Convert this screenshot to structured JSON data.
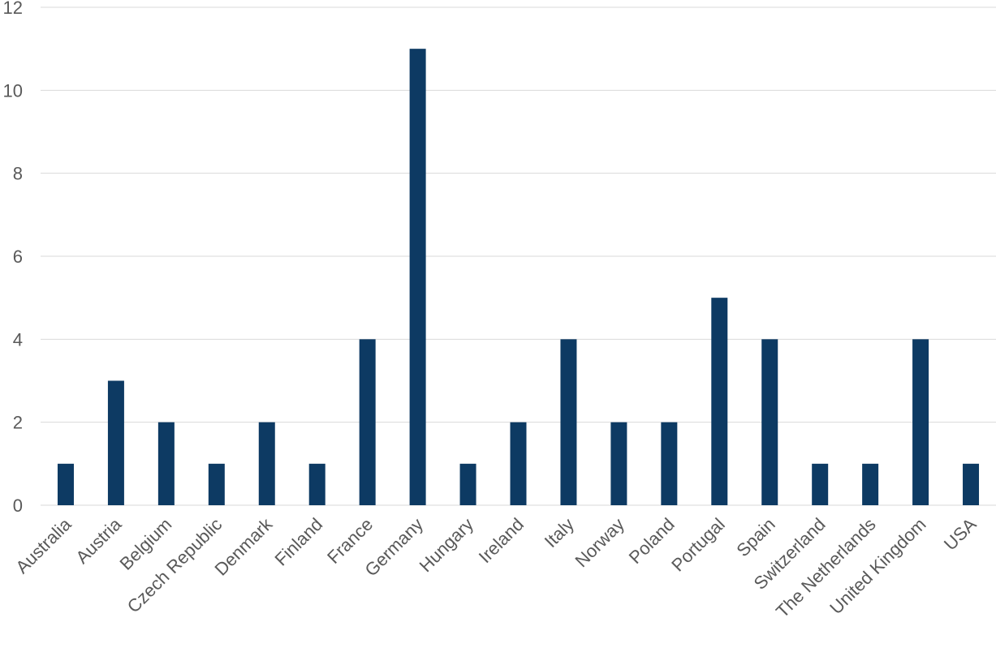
{
  "chart_data": {
    "type": "bar",
    "title": "",
    "xlabel": "",
    "ylabel": "",
    "categories": [
      "Australia",
      "Austria",
      "Belgium",
      "Czech Republic",
      "Denmark",
      "Finland",
      "France",
      "Germany",
      "Hungary",
      "Ireland",
      "Italy",
      "Norway",
      "Poland",
      "Portugal",
      "Spain",
      "Switzerland",
      "The Netherlands",
      "United Kingdom",
      "USA"
    ],
    "values": [
      1,
      3,
      2,
      1,
      2,
      1,
      4,
      11,
      1,
      2,
      4,
      2,
      2,
      5,
      4,
      1,
      1,
      4,
      1
    ],
    "ylim": [
      0,
      12
    ],
    "yticks": [
      0,
      2,
      4,
      6,
      8,
      10,
      12
    ],
    "grid": true,
    "legend": "none",
    "bar_color": "#0d3a63",
    "grid_color": "#d9d9d9",
    "label_color": "#595959"
  }
}
